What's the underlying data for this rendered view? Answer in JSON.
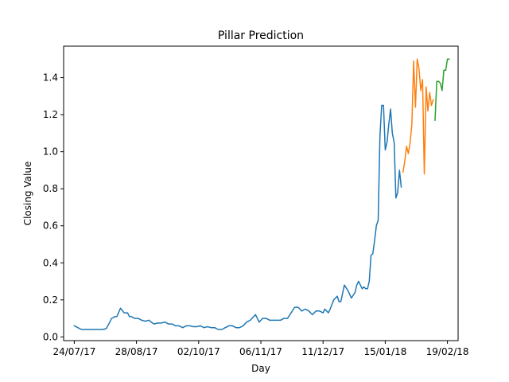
{
  "chart_data": {
    "type": "line",
    "title": "Pillar Prediction",
    "xlabel": "Day",
    "ylabel": "Closing Value",
    "x_ticks": [
      "24/07/17",
      "28/08/17",
      "02/10/17",
      "06/11/17",
      "11/12/17",
      "15/01/18",
      "19/02/18"
    ],
    "y_ticks": [
      "0.0",
      "0.2",
      "0.4",
      "0.6",
      "0.8",
      "1.0",
      "1.2",
      "1.4"
    ],
    "xlim": [
      "2017-07-18",
      "2018-02-25"
    ],
    "ylim": [
      -0.02,
      1.57
    ],
    "grid": false,
    "legend": "none",
    "series": [
      {
        "color": "#1f77b4",
        "x": [
          "2017-07-24",
          "2017-07-26",
          "2017-07-28",
          "2017-07-30",
          "2017-08-01",
          "2017-08-03",
          "2017-08-05",
          "2017-08-07",
          "2017-08-09",
          "2017-08-11",
          "2017-08-13",
          "2017-08-14",
          "2017-08-16",
          "2017-08-17",
          "2017-08-19",
          "2017-08-21",
          "2017-08-23",
          "2017-08-24",
          "2017-08-25",
          "2017-08-26",
          "2017-08-27",
          "2017-08-29",
          "2017-08-31",
          "2017-09-02",
          "2017-09-04",
          "2017-09-06",
          "2017-09-07",
          "2017-09-09",
          "2017-09-11",
          "2017-09-13",
          "2017-09-15",
          "2017-09-17",
          "2017-09-19",
          "2017-09-21",
          "2017-09-23",
          "2017-09-25",
          "2017-09-27",
          "2017-09-29",
          "2017-10-01",
          "2017-10-03",
          "2017-10-05",
          "2017-10-07",
          "2017-10-09",
          "2017-10-11",
          "2017-10-13",
          "2017-10-15",
          "2017-10-17",
          "2017-10-19",
          "2017-10-21",
          "2017-10-23",
          "2017-10-25",
          "2017-10-27",
          "2017-10-29",
          "2017-10-31",
          "2017-11-01",
          "2017-11-03",
          "2017-11-05",
          "2017-11-07",
          "2017-11-09",
          "2017-11-11",
          "2017-11-13",
          "2017-11-15",
          "2017-11-17",
          "2017-11-19",
          "2017-11-21",
          "2017-11-23",
          "2017-11-25",
          "2017-11-27",
          "2017-11-29",
          "2017-12-01",
          "2017-12-03",
          "2017-12-05",
          "2017-12-07",
          "2017-12-09",
          "2017-12-11",
          "2017-12-12",
          "2017-12-14",
          "2017-12-15",
          "2017-12-17",
          "2017-12-19",
          "2017-12-20",
          "2017-12-21",
          "2017-12-23",
          "2017-12-25",
          "2017-12-27",
          "2017-12-29",
          "2017-12-30",
          "2017-12-31",
          "2018-01-02",
          "2018-01-03",
          "2018-01-04",
          "2018-01-05",
          "2018-01-06",
          "2018-01-07",
          "2018-01-08",
          "2018-01-09",
          "2018-01-10",
          "2018-01-11",
          "2018-01-12",
          "2018-01-13",
          "2018-01-14",
          "2018-01-15",
          "2018-01-16",
          "2018-01-17",
          "2018-01-18",
          "2018-01-19",
          "2018-01-20",
          "2018-01-21",
          "2018-01-22",
          "2018-01-23",
          "2018-01-24"
        ],
        "y": [
          0.06,
          0.05,
          0.04,
          0.04,
          0.04,
          0.04,
          0.04,
          0.04,
          0.04,
          0.045,
          0.08,
          0.1,
          0.11,
          0.11,
          0.155,
          0.13,
          0.13,
          0.11,
          0.11,
          0.105,
          0.1,
          0.1,
          0.09,
          0.085,
          0.09,
          0.075,
          0.07,
          0.075,
          0.075,
          0.08,
          0.07,
          0.07,
          0.06,
          0.06,
          0.05,
          0.06,
          0.06,
          0.055,
          0.055,
          0.06,
          0.05,
          0.055,
          0.05,
          0.05,
          0.04,
          0.04,
          0.05,
          0.06,
          0.06,
          0.05,
          0.05,
          0.06,
          0.08,
          0.09,
          0.1,
          0.12,
          0.08,
          0.1,
          0.1,
          0.09,
          0.09,
          0.09,
          0.09,
          0.1,
          0.1,
          0.13,
          0.16,
          0.16,
          0.14,
          0.15,
          0.14,
          0.12,
          0.14,
          0.14,
          0.13,
          0.15,
          0.13,
          0.15,
          0.2,
          0.22,
          0.19,
          0.19,
          0.28,
          0.25,
          0.21,
          0.24,
          0.28,
          0.3,
          0.26,
          0.27,
          0.26,
          0.26,
          0.3,
          0.44,
          0.45,
          0.52,
          0.6,
          0.63,
          1.08,
          1.25,
          1.25,
          1.01,
          1.05,
          1.15,
          1.23,
          1.1,
          1.05,
          0.75,
          0.78,
          0.9,
          0.81
        ]
      },
      {
        "color": "#ff7f0e",
        "x": [
          "2018-01-25",
          "2018-01-26",
          "2018-01-27",
          "2018-01-28",
          "2018-01-29",
          "2018-01-30",
          "2018-01-31",
          "2018-02-01",
          "2018-02-02",
          "2018-02-03",
          "2018-02-04",
          "2018-02-05",
          "2018-02-06",
          "2018-02-07",
          "2018-02-08",
          "2018-02-09",
          "2018-02-10",
          "2018-02-11"
        ],
        "y": [
          0.89,
          0.95,
          1.03,
          0.99,
          1.05,
          1.15,
          1.49,
          1.24,
          1.5,
          1.45,
          1.33,
          1.39,
          0.88,
          1.35,
          1.22,
          1.32,
          1.25,
          1.28
        ]
      },
      {
        "color": "#2ca02c",
        "x": [
          "2018-02-12",
          "2018-02-13",
          "2018-02-14",
          "2018-02-15",
          "2018-02-16",
          "2018-02-17",
          "2018-02-18",
          "2018-02-19",
          "2018-02-20"
        ],
        "y": [
          1.17,
          1.38,
          1.38,
          1.37,
          1.33,
          1.44,
          1.44,
          1.5,
          1.5
        ]
      }
    ]
  }
}
